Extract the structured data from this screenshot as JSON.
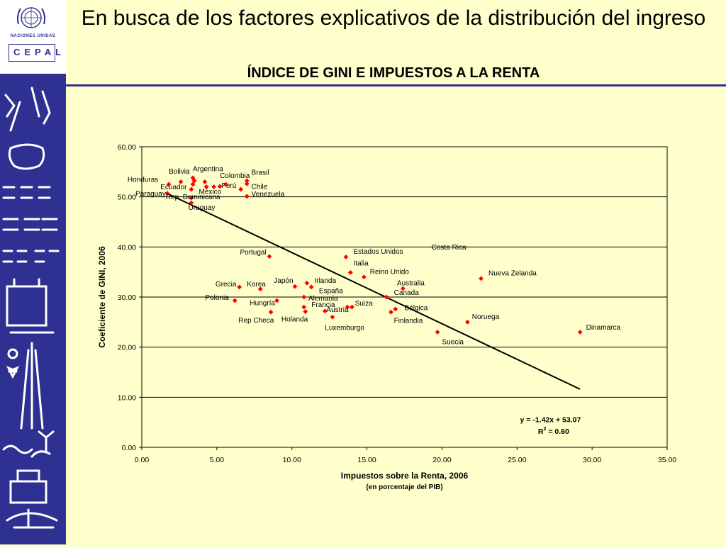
{
  "header": {
    "title": "En busca de los factores explicativos de la distribución del ingreso",
    "subtitle": "ÍNDICE DE GINI E IMPUESTOS A LA RENTA"
  },
  "logo": {
    "un_text": "NACIONES UNIDAS",
    "cepal_text": "CEPAL"
  },
  "colors": {
    "sidebar": "#2e3192",
    "background": "#ffffcc",
    "marker": "#ff0000",
    "trend": "#000000"
  },
  "chart_data": {
    "type": "scatter",
    "title": "",
    "xlabel": "Impuestos sobre la Renta, 2006",
    "xlabel_sub": "(en porcentaje del PIB)",
    "ylabel": "Coeficiente de GINI, 2006",
    "xlim": [
      0,
      35
    ],
    "ylim": [
      0,
      60
    ],
    "xticks": [
      "0.00",
      "5.00",
      "10.00",
      "15.00",
      "20.00",
      "25.00",
      "30.00",
      "35.00"
    ],
    "yticks": [
      "0.00",
      "10.00",
      "20.00",
      "30.00",
      "40.00",
      "50.00",
      "60.00"
    ],
    "grid": "horizontal",
    "trendline": {
      "slope": -1.42,
      "intercept": 53.07,
      "x_range": [
        1.8,
        29.2
      ]
    },
    "equation": "y = -1.42x + 53.07",
    "r2_label": "R",
    "r2_sup": "2",
    "r2_value": " = 0.60",
    "points": [
      {
        "label": "Honduras",
        "x": 1.8,
        "y": 52.5,
        "anchor": "end",
        "lx": 1.1,
        "ly": 53.0
      },
      {
        "label": "Paraguay",
        "x": 1.7,
        "y": 50.7,
        "anchor": "end",
        "lx": 1.6,
        "ly": 50.2
      },
      {
        "label": "Bolivia",
        "x": 2.6,
        "y": 53.0,
        "anchor": "start",
        "lx": 1.8,
        "ly": 54.6
      },
      {
        "label": "Ecuador",
        "x": 3.3,
        "y": 51.5,
        "anchor": "end",
        "lx": 3.0,
        "ly": 51.5
      },
      {
        "label": "Argentina",
        "x": 3.4,
        "y": 53.8,
        "anchor": "start",
        "lx": 3.4,
        "ly": 55.1
      },
      {
        "label": "",
        "x": 3.5,
        "y": 53.2
      },
      {
        "label": "",
        "x": 3.4,
        "y": 52.5
      },
      {
        "label": "Rep. Dominicana",
        "x": 3.3,
        "y": 49.8,
        "anchor": "start",
        "lx": 1.6,
        "ly": 49.5
      },
      {
        "label": "Uruguay",
        "x": 3.3,
        "y": 48.8,
        "anchor": "start",
        "lx": 3.1,
        "ly": 47.4
      },
      {
        "label": "México",
        "x": 4.3,
        "y": 52.0,
        "anchor": "start",
        "lx": 3.8,
        "ly": 50.6
      },
      {
        "label": "",
        "x": 4.2,
        "y": 53.0
      },
      {
        "label": "Perú",
        "x": 4.8,
        "y": 52.0,
        "anchor": "start",
        "lx": 5.3,
        "ly": 51.8
      },
      {
        "label": "Colombia",
        "x": 5.6,
        "y": 52.5,
        "anchor": "start",
        "lx": 5.2,
        "ly": 53.8
      },
      {
        "label": "",
        "x": 5.2,
        "y": 52.1
      },
      {
        "label": "Chile",
        "x": 6.6,
        "y": 51.5,
        "anchor": "start",
        "lx": 7.3,
        "ly": 51.6
      },
      {
        "label": "Brasil",
        "x": 7.0,
        "y": 53.2,
        "anchor": "start",
        "lx": 7.3,
        "ly": 54.4
      },
      {
        "label": "",
        "x": 7.0,
        "y": 52.6
      },
      {
        "label": "Venezuela",
        "x": 7.0,
        "y": 50.1,
        "anchor": "start",
        "lx": 7.3,
        "ly": 50.1
      },
      {
        "label": "Portugal",
        "x": 8.5,
        "y": 38.1,
        "anchor": "end",
        "lx": 8.3,
        "ly": 38.5
      },
      {
        "label": "Grecia",
        "x": 6.5,
        "y": 32.0,
        "anchor": "end",
        "lx": 6.3,
        "ly": 32.1
      },
      {
        "label": "Polonia",
        "x": 6.2,
        "y": 29.3,
        "anchor": "end",
        "lx": 5.8,
        "ly": 29.4
      },
      {
        "label": "Korea",
        "x": 7.9,
        "y": 31.6,
        "anchor": "start",
        "lx": 7.0,
        "ly": 32.1
      },
      {
        "label": "Hungría",
        "x": 9.0,
        "y": 29.3,
        "anchor": "start",
        "lx": 7.2,
        "ly": 28.4
      },
      {
        "label": "Rep Checa",
        "x": 8.6,
        "y": 27.0,
        "anchor": "end",
        "lx": 8.8,
        "ly": 24.9
      },
      {
        "label": "Japón",
        "x": 10.2,
        "y": 32.1,
        "anchor": "start",
        "lx": 8.8,
        "ly": 32.8
      },
      {
        "label": "Holanda",
        "x": 10.8,
        "y": 28.0,
        "anchor": "start",
        "lx": 9.3,
        "ly": 25.1
      },
      {
        "label": "",
        "x": 10.9,
        "y": 27.1
      },
      {
        "label": "Irlanda",
        "x": 11.0,
        "y": 32.8,
        "anchor": "start",
        "lx": 11.5,
        "ly": 32.8
      },
      {
        "label": "España",
        "x": 11.3,
        "y": 32.0,
        "anchor": "start",
        "lx": 11.8,
        "ly": 30.8
      },
      {
        "label": "Alemania",
        "x": 10.8,
        "y": 30.0,
        "anchor": "start",
        "lx": 11.1,
        "ly": 29.3
      },
      {
        "label": "Francia",
        "x": 12.2,
        "y": 27.2,
        "anchor": "start",
        "lx": 11.3,
        "ly": 28.0
      },
      {
        "label": "Austria",
        "x": 12.7,
        "y": 26.0,
        "anchor": "start",
        "lx": 12.3,
        "ly": 27.0
      },
      {
        "label": "Luxemburgo",
        "x": 13.7,
        "y": 28.0,
        "anchor": "start",
        "lx": 12.2,
        "ly": 23.4
      },
      {
        "label": "Suiza",
        "x": 14.0,
        "y": 28.0,
        "anchor": "start",
        "lx": 14.2,
        "ly": 28.3
      },
      {
        "label": "Estados Unidos",
        "x": 13.6,
        "y": 38.0,
        "anchor": "start",
        "lx": 14.1,
        "ly": 38.6
      },
      {
        "label": "Italia",
        "x": 13.9,
        "y": 34.9,
        "anchor": "start",
        "lx": 14.1,
        "ly": 36.3
      },
      {
        "label": "Reino Unido",
        "x": 14.8,
        "y": 34.0,
        "anchor": "start",
        "lx": 15.2,
        "ly": 34.6
      },
      {
        "label": "Canada",
        "x": 16.3,
        "y": 30.0,
        "anchor": "start",
        "lx": 16.8,
        "ly": 30.4
      },
      {
        "label": "Australia",
        "x": 17.4,
        "y": 31.7,
        "anchor": "start",
        "lx": 17.0,
        "ly": 32.3
      },
      {
        "label": "Bélgica",
        "x": 16.9,
        "y": 27.6,
        "anchor": "start",
        "lx": 17.5,
        "ly": 27.4
      },
      {
        "label": "Finlandia",
        "x": 16.6,
        "y": 27.0,
        "anchor": "start",
        "lx": 16.8,
        "ly": 24.8
      },
      {
        "label": "Costa Rica",
        "x": 19.0,
        "y": 40.0,
        "anchor": "start",
        "lx": 19.3,
        "ly": 39.5,
        "no_marker": true
      },
      {
        "label": "Nueva Zelanda",
        "x": 22.6,
        "y": 33.7,
        "anchor": "start",
        "lx": 23.1,
        "ly": 34.3
      },
      {
        "label": "Noruega",
        "x": 21.7,
        "y": 25.0,
        "anchor": "start",
        "lx": 22.0,
        "ly": 25.6
      },
      {
        "label": "Suecia",
        "x": 19.7,
        "y": 23.0,
        "anchor": "start",
        "lx": 20.0,
        "ly": 20.6
      },
      {
        "label": "Dinamarca",
        "x": 29.2,
        "y": 23.0,
        "anchor": "start",
        "lx": 29.6,
        "ly": 23.5
      }
    ]
  }
}
